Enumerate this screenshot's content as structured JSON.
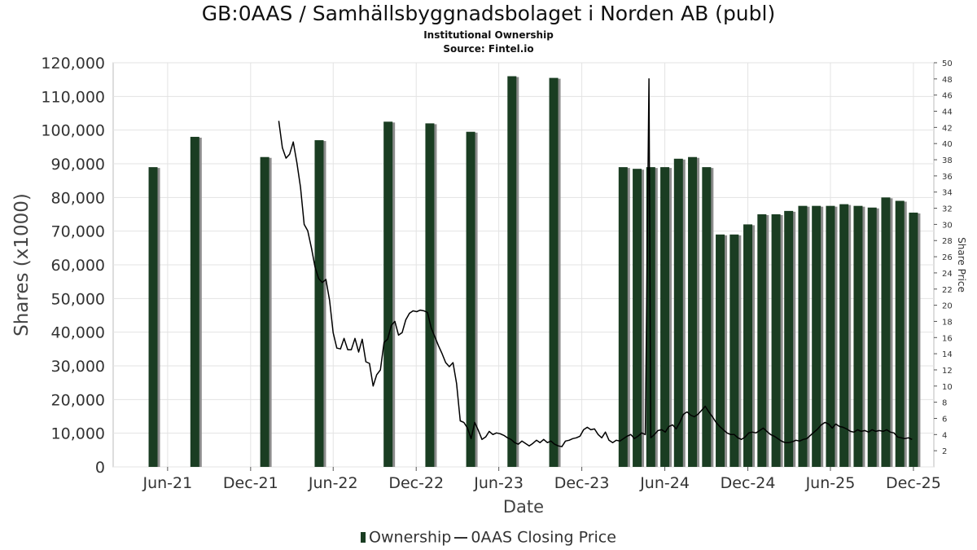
{
  "header": {
    "title": "GB:0AAS / Samhällsbyggnadsbolaget i Norden AB (publ)",
    "subtitle": "Institutional Ownership",
    "source": "Source: Fintel.io"
  },
  "legend": {
    "ownership": "Ownership",
    "price": "0AAS Closing Price"
  },
  "colors": {
    "bar": "#1a3d22",
    "bar_shadow": "#8c8c8c",
    "line": "#000000",
    "grid": "#e3e3e3"
  },
  "chart_data": {
    "type": "bar",
    "xlabel": "Date",
    "ylabel": "Shares (x1000)",
    "y2label": "Share Price",
    "ylim": [
      0,
      120000
    ],
    "y2lim": [
      0,
      50
    ],
    "x_range": [
      "2021-02-01",
      "2026-01-15"
    ],
    "grid": true,
    "legend_position": "bottom",
    "yticks": [
      "0",
      "10,000",
      "20,000",
      "30,000",
      "40,000",
      "50,000",
      "60,000",
      "70,000",
      "80,000",
      "90,000",
      "100,000",
      "110,000",
      "120,000"
    ],
    "y2ticks": [
      "2",
      "4",
      "6",
      "8",
      "10",
      "12",
      "14",
      "16",
      "18",
      "20",
      "22",
      "24",
      "26",
      "28",
      "30",
      "32",
      "34",
      "36",
      "38",
      "40",
      "42",
      "44",
      "46",
      "48",
      "50"
    ],
    "xticks": [
      {
        "label": "Jun-21",
        "date": "2021-06-01"
      },
      {
        "label": "Dec-21",
        "date": "2021-12-01"
      },
      {
        "label": "Jun-22",
        "date": "2022-06-01"
      },
      {
        "label": "Dec-22",
        "date": "2022-12-01"
      },
      {
        "label": "Jun-23",
        "date": "2023-06-01"
      },
      {
        "label": "Dec-23",
        "date": "2023-12-01"
      },
      {
        "label": "Jun-24",
        "date": "2024-06-01"
      },
      {
        "label": "Dec-24",
        "date": "2024-12-01"
      },
      {
        "label": "Jun-25",
        "date": "2025-06-01"
      },
      {
        "label": "Dec-25",
        "date": "2025-12-01"
      }
    ],
    "series": [
      {
        "name": "Ownership",
        "type": "bar",
        "points": [
          {
            "x": "2021-04-30",
            "y": 89000
          },
          {
            "x": "2021-07-31",
            "y": 98000
          },
          {
            "x": "2022-01-01",
            "y": 92000
          },
          {
            "x": "2022-05-01",
            "y": 97000
          },
          {
            "x": "2022-09-30",
            "y": 102500
          },
          {
            "x": "2022-12-31",
            "y": 102000
          },
          {
            "x": "2023-03-31",
            "y": 99500
          },
          {
            "x": "2023-06-30",
            "y": 116000
          },
          {
            "x": "2023-09-30",
            "y": 115500
          },
          {
            "x": "2024-03-01",
            "y": 89000
          },
          {
            "x": "2024-04-01",
            "y": 88500
          },
          {
            "x": "2024-05-01",
            "y": 89000
          },
          {
            "x": "2024-06-01",
            "y": 89000
          },
          {
            "x": "2024-07-01",
            "y": 91500
          },
          {
            "x": "2024-08-01",
            "y": 92000
          },
          {
            "x": "2024-09-01",
            "y": 89000
          },
          {
            "x": "2024-10-01",
            "y": 69000
          },
          {
            "x": "2024-11-01",
            "y": 69000
          },
          {
            "x": "2024-12-01",
            "y": 72000
          },
          {
            "x": "2025-01-01",
            "y": 75000
          },
          {
            "x": "2025-02-01",
            "y": 75000
          },
          {
            "x": "2025-03-01",
            "y": 76000
          },
          {
            "x": "2025-04-01",
            "y": 77500
          },
          {
            "x": "2025-05-01",
            "y": 77500
          },
          {
            "x": "2025-06-01",
            "y": 77500
          },
          {
            "x": "2025-07-01",
            "y": 78000
          },
          {
            "x": "2025-08-01",
            "y": 77500
          },
          {
            "x": "2025-09-01",
            "y": 77000
          },
          {
            "x": "2025-10-01",
            "y": 80000
          },
          {
            "x": "2025-11-01",
            "y": 79000
          },
          {
            "x": "2025-12-01",
            "y": 75500
          }
        ]
      },
      {
        "name": "0AAS Closing Price",
        "type": "line",
        "axis": "right",
        "points": [
          {
            "x": "2022-02-01",
            "y": 42.8
          },
          {
            "x": "2022-02-09",
            "y": 39.5
          },
          {
            "x": "2022-02-17",
            "y": 38.2
          },
          {
            "x": "2022-02-25",
            "y": 38.7
          },
          {
            "x": "2022-03-05",
            "y": 40.2
          },
          {
            "x": "2022-03-13",
            "y": 37.6
          },
          {
            "x": "2022-03-21",
            "y": 34.6
          },
          {
            "x": "2022-03-29",
            "y": 30.0
          },
          {
            "x": "2022-04-06",
            "y": 29.2
          },
          {
            "x": "2022-04-14",
            "y": 27.1
          },
          {
            "x": "2022-04-22",
            "y": 24.7
          },
          {
            "x": "2022-04-30",
            "y": 23.3
          },
          {
            "x": "2022-05-08",
            "y": 22.8
          },
          {
            "x": "2022-05-16",
            "y": 23.2
          },
          {
            "x": "2022-05-24",
            "y": 20.6
          },
          {
            "x": "2022-06-01",
            "y": 16.6
          },
          {
            "x": "2022-06-09",
            "y": 14.7
          },
          {
            "x": "2022-06-17",
            "y": 14.6
          },
          {
            "x": "2022-06-25",
            "y": 15.9
          },
          {
            "x": "2022-07-03",
            "y": 14.5
          },
          {
            "x": "2022-07-11",
            "y": 14.5
          },
          {
            "x": "2022-07-19",
            "y": 15.9
          },
          {
            "x": "2022-07-27",
            "y": 14.2
          },
          {
            "x": "2022-08-04",
            "y": 15.8
          },
          {
            "x": "2022-08-12",
            "y": 13.0
          },
          {
            "x": "2022-08-20",
            "y": 12.8
          },
          {
            "x": "2022-08-28",
            "y": 10.0
          },
          {
            "x": "2022-09-05",
            "y": 11.4
          },
          {
            "x": "2022-09-13",
            "y": 12.0
          },
          {
            "x": "2022-09-21",
            "y": 15.4
          },
          {
            "x": "2022-09-29",
            "y": 15.8
          },
          {
            "x": "2022-10-07",
            "y": 17.5
          },
          {
            "x": "2022-10-15",
            "y": 18.0
          },
          {
            "x": "2022-10-23",
            "y": 16.3
          },
          {
            "x": "2022-10-31",
            "y": 16.6
          },
          {
            "x": "2022-11-08",
            "y": 18.2
          },
          {
            "x": "2022-11-16",
            "y": 19.0
          },
          {
            "x": "2022-11-24",
            "y": 19.3
          },
          {
            "x": "2022-12-02",
            "y": 19.2
          },
          {
            "x": "2022-12-10",
            "y": 19.4
          },
          {
            "x": "2022-12-18",
            "y": 19.3
          },
          {
            "x": "2022-12-26",
            "y": 19.1
          },
          {
            "x": "2023-01-03",
            "y": 17.2
          },
          {
            "x": "2023-01-11",
            "y": 16.1
          },
          {
            "x": "2023-01-19",
            "y": 15.0
          },
          {
            "x": "2023-01-27",
            "y": 14.0
          },
          {
            "x": "2023-02-04",
            "y": 12.9
          },
          {
            "x": "2023-02-12",
            "y": 12.4
          },
          {
            "x": "2023-02-20",
            "y": 12.9
          },
          {
            "x": "2023-02-28",
            "y": 10.3
          },
          {
            "x": "2023-03-08",
            "y": 5.7
          },
          {
            "x": "2023-03-16",
            "y": 5.5
          },
          {
            "x": "2023-03-24",
            "y": 4.8
          },
          {
            "x": "2023-04-01",
            "y": 3.5
          },
          {
            "x": "2023-04-09",
            "y": 5.5
          },
          {
            "x": "2023-04-17",
            "y": 4.5
          },
          {
            "x": "2023-04-25",
            "y": 3.4
          },
          {
            "x": "2023-05-03",
            "y": 3.7
          },
          {
            "x": "2023-05-11",
            "y": 4.4
          },
          {
            "x": "2023-05-19",
            "y": 4.0
          },
          {
            "x": "2023-05-27",
            "y": 4.2
          },
          {
            "x": "2023-06-04",
            "y": 4.1
          },
          {
            "x": "2023-06-12",
            "y": 3.9
          },
          {
            "x": "2023-06-20",
            "y": 3.6
          },
          {
            "x": "2023-06-28",
            "y": 3.4
          },
          {
            "x": "2023-07-06",
            "y": 3.0
          },
          {
            "x": "2023-07-14",
            "y": 2.8
          },
          {
            "x": "2023-07-22",
            "y": 3.2
          },
          {
            "x": "2023-07-30",
            "y": 2.9
          },
          {
            "x": "2023-08-07",
            "y": 2.6
          },
          {
            "x": "2023-08-15",
            "y": 2.9
          },
          {
            "x": "2023-08-23",
            "y": 3.3
          },
          {
            "x": "2023-08-31",
            "y": 3.0
          },
          {
            "x": "2023-09-08",
            "y": 3.4
          },
          {
            "x": "2023-09-16",
            "y": 3.0
          },
          {
            "x": "2023-09-24",
            "y": 3.2
          },
          {
            "x": "2023-10-02",
            "y": 2.8
          },
          {
            "x": "2023-10-10",
            "y": 2.6
          },
          {
            "x": "2023-10-18",
            "y": 2.5
          },
          {
            "x": "2023-10-26",
            "y": 3.2
          },
          {
            "x": "2023-11-03",
            "y": 3.3
          },
          {
            "x": "2023-11-11",
            "y": 3.5
          },
          {
            "x": "2023-11-19",
            "y": 3.6
          },
          {
            "x": "2023-11-27",
            "y": 3.8
          },
          {
            "x": "2023-12-05",
            "y": 4.6
          },
          {
            "x": "2023-12-13",
            "y": 4.9
          },
          {
            "x": "2023-12-21",
            "y": 4.6
          },
          {
            "x": "2023-12-29",
            "y": 4.7
          },
          {
            "x": "2024-01-06",
            "y": 4.0
          },
          {
            "x": "2024-01-14",
            "y": 3.6
          },
          {
            "x": "2024-01-22",
            "y": 4.3
          },
          {
            "x": "2024-01-30",
            "y": 3.3
          },
          {
            "x": "2024-02-07",
            "y": 3.0
          },
          {
            "x": "2024-02-15",
            "y": 3.3
          },
          {
            "x": "2024-02-23",
            "y": 3.2
          },
          {
            "x": "2024-03-02",
            "y": 3.5
          },
          {
            "x": "2024-03-10",
            "y": 3.8
          },
          {
            "x": "2024-03-18",
            "y": 4.0
          },
          {
            "x": "2024-03-26",
            "y": 3.5
          },
          {
            "x": "2024-04-03",
            "y": 3.8
          },
          {
            "x": "2024-04-11",
            "y": 4.2
          },
          {
            "x": "2024-04-19",
            "y": 4.0
          },
          {
            "x": "2024-04-27",
            "y": 48.0
          },
          {
            "x": "2024-05-01",
            "y": 3.6
          },
          {
            "x": "2024-05-09",
            "y": 4.0
          },
          {
            "x": "2024-05-17",
            "y": 4.5
          },
          {
            "x": "2024-05-25",
            "y": 4.6
          },
          {
            "x": "2024-06-02",
            "y": 4.3
          },
          {
            "x": "2024-06-10",
            "y": 5.0
          },
          {
            "x": "2024-06-18",
            "y": 5.2
          },
          {
            "x": "2024-06-26",
            "y": 4.7
          },
          {
            "x": "2024-07-04",
            "y": 5.5
          },
          {
            "x": "2024-07-12",
            "y": 6.5
          },
          {
            "x": "2024-07-20",
            "y": 6.8
          },
          {
            "x": "2024-07-28",
            "y": 6.4
          },
          {
            "x": "2024-08-05",
            "y": 6.2
          },
          {
            "x": "2024-08-13",
            "y": 6.5
          },
          {
            "x": "2024-08-21",
            "y": 7.0
          },
          {
            "x": "2024-08-29",
            "y": 7.5
          },
          {
            "x": "2024-09-06",
            "y": 6.8
          },
          {
            "x": "2024-09-14",
            "y": 6.2
          },
          {
            "x": "2024-09-22",
            "y": 5.5
          },
          {
            "x": "2024-09-30",
            "y": 5.0
          },
          {
            "x": "2024-10-08",
            "y": 4.6
          },
          {
            "x": "2024-10-16",
            "y": 4.2
          },
          {
            "x": "2024-10-24",
            "y": 4.0
          },
          {
            "x": "2024-11-01",
            "y": 4.0
          },
          {
            "x": "2024-11-09",
            "y": 3.6
          },
          {
            "x": "2024-11-17",
            "y": 3.4
          },
          {
            "x": "2024-11-25",
            "y": 3.7
          },
          {
            "x": "2024-12-03",
            "y": 4.2
          },
          {
            "x": "2024-12-11",
            "y": 4.3
          },
          {
            "x": "2024-12-19",
            "y": 4.2
          },
          {
            "x": "2024-12-27",
            "y": 4.5
          },
          {
            "x": "2025-01-04",
            "y": 4.8
          },
          {
            "x": "2025-01-12",
            "y": 4.4
          },
          {
            "x": "2025-01-20",
            "y": 4.0
          },
          {
            "x": "2025-01-28",
            "y": 3.8
          },
          {
            "x": "2025-02-05",
            "y": 3.5
          },
          {
            "x": "2025-02-13",
            "y": 3.2
          },
          {
            "x": "2025-02-21",
            "y": 3.0
          },
          {
            "x": "2025-03-01",
            "y": 3.0
          },
          {
            "x": "2025-03-09",
            "y": 3.1
          },
          {
            "x": "2025-03-17",
            "y": 3.3
          },
          {
            "x": "2025-03-25",
            "y": 3.2
          },
          {
            "x": "2025-04-02",
            "y": 3.4
          },
          {
            "x": "2025-04-10",
            "y": 3.5
          },
          {
            "x": "2025-04-18",
            "y": 3.9
          },
          {
            "x": "2025-04-26",
            "y": 4.3
          },
          {
            "x": "2025-05-04",
            "y": 4.7
          },
          {
            "x": "2025-05-12",
            "y": 5.2
          },
          {
            "x": "2025-05-20",
            "y": 5.5
          },
          {
            "x": "2025-05-28",
            "y": 5.3
          },
          {
            "x": "2025-06-05",
            "y": 4.8
          },
          {
            "x": "2025-06-13",
            "y": 5.3
          },
          {
            "x": "2025-06-21",
            "y": 5.0
          },
          {
            "x": "2025-06-29",
            "y": 4.9
          },
          {
            "x": "2025-07-07",
            "y": 4.7
          },
          {
            "x": "2025-07-15",
            "y": 4.4
          },
          {
            "x": "2025-07-23",
            "y": 4.3
          },
          {
            "x": "2025-07-31",
            "y": 4.6
          },
          {
            "x": "2025-08-08",
            "y": 4.4
          },
          {
            "x": "2025-08-16",
            "y": 4.5
          },
          {
            "x": "2025-08-24",
            "y": 4.3
          },
          {
            "x": "2025-09-01",
            "y": 4.6
          },
          {
            "x": "2025-09-09",
            "y": 4.4
          },
          {
            "x": "2025-09-17",
            "y": 4.5
          },
          {
            "x": "2025-09-25",
            "y": 4.4
          },
          {
            "x": "2025-10-03",
            "y": 4.6
          },
          {
            "x": "2025-10-11",
            "y": 4.3
          },
          {
            "x": "2025-10-19",
            "y": 4.2
          },
          {
            "x": "2025-10-27",
            "y": 3.7
          },
          {
            "x": "2025-11-04",
            "y": 3.6
          },
          {
            "x": "2025-11-12",
            "y": 3.5
          },
          {
            "x": "2025-11-20",
            "y": 3.6
          },
          {
            "x": "2025-11-28",
            "y": 3.4
          }
        ]
      }
    ]
  }
}
